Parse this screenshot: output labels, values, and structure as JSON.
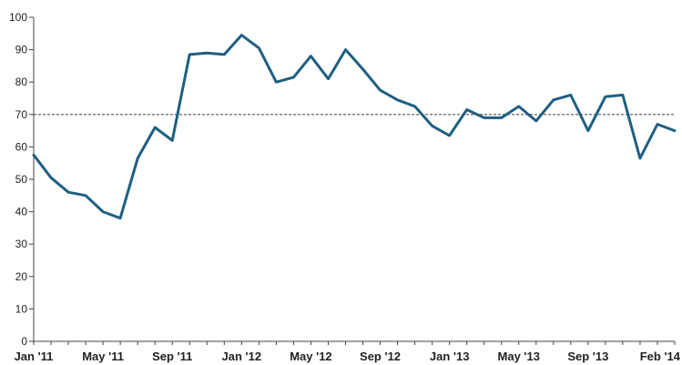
{
  "chart_data": {
    "type": "line",
    "title": "",
    "xlabel": "",
    "ylabel": "",
    "ylim": [
      0,
      100
    ],
    "yticks": [
      0,
      10,
      20,
      30,
      40,
      50,
      60,
      70,
      80,
      90,
      100
    ],
    "grid": false,
    "reference_line": {
      "y": 70,
      "style": "dashed"
    },
    "x_tick_labels": [
      {
        "label": "Jan '11",
        "index": 0
      },
      {
        "label": "May '11",
        "index": 4
      },
      {
        "label": "Sep '11",
        "index": 8
      },
      {
        "label": "Jan '12",
        "index": 12
      },
      {
        "label": "May '12",
        "index": 16
      },
      {
        "label": "Sep '12",
        "index": 20
      },
      {
        "label": "Jan '13",
        "index": 24
      },
      {
        "label": "May '13",
        "index": 28
      },
      {
        "label": "Sep '13",
        "index": 32
      },
      {
        "label": "Feb '14",
        "index": 37
      }
    ],
    "series": [
      {
        "color": "#1f5f82",
        "values": [
          57.5,
          50.5,
          46,
          45,
          40,
          38,
          56.5,
          66,
          62,
          88.5,
          89,
          88.5,
          94.5,
          90.5,
          80,
          81.5,
          88,
          81,
          90,
          84,
          77.5,
          74.5,
          72.5,
          66.5,
          63.5,
          71.5,
          69,
          69,
          72.5,
          68,
          74.5,
          76,
          65,
          75.5,
          76,
          56.5,
          67,
          65
        ]
      }
    ]
  }
}
